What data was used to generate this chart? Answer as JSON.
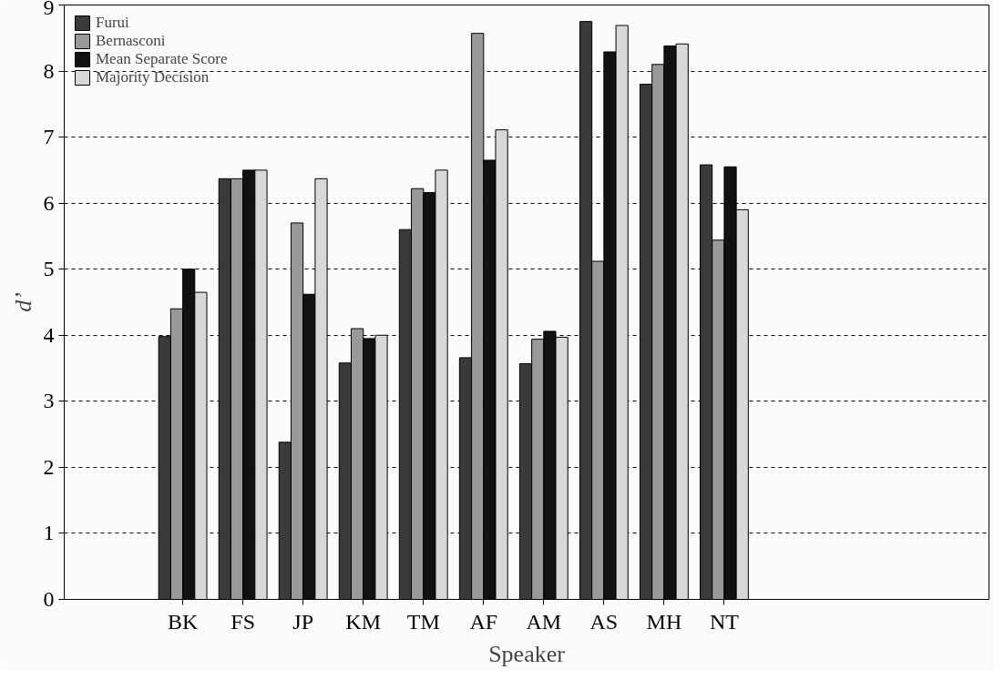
{
  "chart_data": {
    "type": "bar",
    "xlabel": "Speaker",
    "ylabel": "d’",
    "categories": [
      "BK",
      "FS",
      "JP",
      "KM",
      "TM",
      "AF",
      "AM",
      "AS",
      "MH",
      "NT"
    ],
    "series": [
      {
        "name": "Furui",
        "color": "#3a3a3a",
        "values": [
          3.98,
          6.37,
          2.38,
          3.58,
          5.6,
          3.66,
          3.57,
          8.75,
          7.8,
          6.58
        ]
      },
      {
        "name": "Bernasconi",
        "color": "#999999",
        "values": [
          4.4,
          6.37,
          5.7,
          4.1,
          6.22,
          8.57,
          3.94,
          5.12,
          8.1,
          5.44
        ]
      },
      {
        "name": "Mean Separate Score",
        "color": "#111111",
        "values": [
          5.0,
          6.5,
          4.62,
          3.95,
          6.16,
          6.65,
          4.06,
          8.29,
          8.38,
          6.55
        ]
      },
      {
        "name": "Majority Decision",
        "color": "#d8d8d8",
        "values": [
          4.65,
          6.5,
          6.37,
          4.0,
          6.5,
          7.11,
          3.97,
          8.69,
          8.41,
          5.9
        ]
      }
    ],
    "ylim": [
      0,
      9
    ],
    "yticks": [
      0,
      1,
      2,
      3,
      4,
      5,
      6,
      7,
      8,
      9
    ],
    "grid": "y",
    "legend": "top left"
  }
}
